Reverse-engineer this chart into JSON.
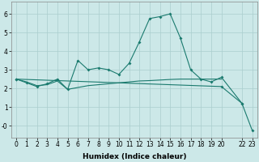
{
  "xlabel": "Humidex (Indice chaleur)",
  "bg_color": "#cce8e8",
  "grid_color": "#aacece",
  "line_color": "#1a7a6e",
  "xlim": [
    -0.5,
    23.5
  ],
  "ylim": [
    -0.65,
    6.65
  ],
  "xticks": [
    0,
    1,
    2,
    3,
    4,
    5,
    6,
    7,
    8,
    9,
    10,
    11,
    12,
    13,
    14,
    15,
    16,
    17,
    18,
    19,
    20,
    22,
    23
  ],
  "xtick_labels": [
    "0",
    "1",
    "2",
    "3",
    "4",
    "5",
    "6",
    "7",
    "8",
    "9",
    "10",
    "11",
    "12",
    "13",
    "14",
    "15",
    "16",
    "17",
    "18",
    "19",
    "20",
    "22",
    "23"
  ],
  "yticks": [
    0,
    1,
    2,
    3,
    4,
    5,
    6
  ],
  "ytick_labels": [
    "-0",
    "1",
    "2",
    "3",
    "4",
    "5",
    "6"
  ],
  "series1_x": [
    0,
    1,
    2,
    3,
    4,
    5,
    6,
    7,
    8,
    9,
    10,
    11,
    12,
    13,
    14,
    15,
    16,
    17,
    18,
    19,
    20,
    22
  ],
  "series1_y": [
    2.5,
    2.3,
    2.1,
    2.25,
    2.5,
    1.95,
    3.5,
    3.0,
    3.1,
    3.0,
    2.75,
    3.35,
    4.5,
    5.75,
    5.85,
    6.0,
    4.7,
    3.0,
    2.5,
    2.35,
    2.6,
    1.2
  ],
  "series2_x": [
    0,
    1,
    2,
    3,
    4,
    5,
    6,
    7,
    8,
    9,
    10,
    11,
    12,
    13,
    14,
    15,
    16,
    17,
    18,
    19,
    20
  ],
  "series2_y": [
    2.5,
    2.35,
    2.15,
    2.2,
    2.4,
    1.95,
    2.05,
    2.15,
    2.2,
    2.25,
    2.3,
    2.35,
    2.4,
    2.42,
    2.45,
    2.48,
    2.5,
    2.5,
    2.5,
    2.5,
    2.5
  ],
  "series3_x": [
    0,
    20,
    22,
    23
  ],
  "series3_y": [
    2.5,
    2.1,
    1.2,
    -0.25
  ],
  "font_size": 5.5,
  "xlabel_fontsize": 6.5
}
